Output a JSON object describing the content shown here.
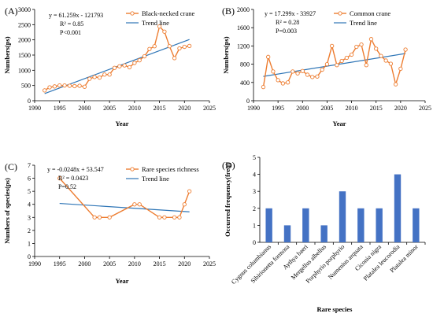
{
  "charts": [
    {
      "panel_label": "(A)",
      "type": "line",
      "xlabel": "Year",
      "ylabel": "Numbers(ps)",
      "xlim": [
        1990,
        2025
      ],
      "ylim": [
        0,
        3000
      ],
      "xticks": [
        1990,
        1995,
        2000,
        2005,
        2010,
        2015,
        2020,
        2025
      ],
      "yticks": [
        0,
        500,
        1000,
        1500,
        2000,
        2500,
        3000
      ],
      "annotations": [
        "y = 61.259x - 121793",
        "R² = 0.85",
        "P<0.001"
      ],
      "legend": {
        "series": "Black-necked crane",
        "trend": "Trend line"
      },
      "x": [
        1992,
        1993,
        1994,
        1995,
        1996,
        1997,
        1998,
        1999,
        2000,
        2001,
        2002,
        2003,
        2004,
        2005,
        2006,
        2007,
        2008,
        2009,
        2010,
        2011,
        2012,
        2013,
        2014,
        2015,
        2016,
        2017,
        2018,
        2019,
        2020,
        2021
      ],
      "y": [
        340,
        440,
        470,
        500,
        500,
        490,
        480,
        490,
        460,
        720,
        780,
        760,
        860,
        860,
        1080,
        1130,
        1160,
        1100,
        1240,
        1330,
        1460,
        1700,
        1790,
        2440,
        2270,
        1790,
        1400,
        1720,
        1770,
        1800
      ],
      "trend": {
        "slope": 61.259,
        "intercept": -121793,
        "x_range": [
          1992,
          2021
        ]
      }
    },
    {
      "panel_label": "(B)",
      "type": "line",
      "xlabel": "Year",
      "ylabel": "Numbers(ps)",
      "xlim": [
        1990,
        2025
      ],
      "ylim": [
        0,
        2000
      ],
      "xticks": [
        1990,
        1995,
        2000,
        2005,
        2010,
        2015,
        2020,
        2025
      ],
      "yticks": [
        0,
        400,
        800,
        1200,
        1600,
        2000
      ],
      "annotations": [
        "y = 17.299x - 33927",
        "R² = 0.28",
        "P=0.003"
      ],
      "legend": {
        "series": "Common crane",
        "trend": "Trend line"
      },
      "x": [
        1992,
        1993,
        1994,
        1995,
        1996,
        1997,
        1998,
        1999,
        2000,
        2001,
        2002,
        2003,
        2004,
        2005,
        2006,
        2007,
        2008,
        2009,
        2010,
        2011,
        2012,
        2013,
        2014,
        2015,
        2016,
        2017,
        2018,
        2019,
        2020,
        2021
      ],
      "y": [
        300,
        960,
        640,
        450,
        380,
        400,
        640,
        600,
        650,
        570,
        520,
        530,
        680,
        800,
        1200,
        780,
        870,
        940,
        1010,
        1180,
        1230,
        780,
        1350,
        1140,
        980,
        880,
        810,
        360,
        700,
        1120
      ],
      "trend": {
        "slope": 17.299,
        "intercept": -33927,
        "x_range": [
          1992,
          2021
        ]
      }
    },
    {
      "panel_label": "(C)",
      "type": "line",
      "xlabel": "Year",
      "ylabel": "Numbers of species(ps)",
      "xlim": [
        1990,
        2025
      ],
      "ylim": [
        0,
        7
      ],
      "xticks": [
        1990,
        1995,
        2000,
        2005,
        2010,
        2015,
        2020,
        2025
      ],
      "yticks": [
        0,
        1,
        2,
        3,
        4,
        5,
        6,
        7
      ],
      "annotations": [
        "y = -0.0248x + 53.547",
        "R² = 0.0423",
        "P=0.52"
      ],
      "legend": {
        "series": "Rare species richness",
        "trend": "Trend line"
      },
      "x": [
        1995,
        2002,
        2003,
        2005,
        2010,
        2011,
        2015,
        2016,
        2018,
        2019,
        2020,
        2021
      ],
      "y": [
        6,
        3,
        3,
        3,
        4,
        4,
        3,
        3,
        3,
        3,
        4,
        5
      ],
      "trend": {
        "slope": -0.0248,
        "intercept": 53.547,
        "x_range": [
          1995,
          2021
        ]
      }
    },
    {
      "panel_label": "(D)",
      "type": "bar",
      "xlabel": "Rare species",
      "ylabel": "Occurred frequency(freq)",
      "ylim": [
        0,
        5
      ],
      "yticks": [
        0,
        1,
        2,
        3,
        4,
        5
      ],
      "categories": [
        "Cygnus columbianus",
        "Sibirionetta formosa",
        "Aythya baeri",
        "Mergellus albellus",
        "Porphyrio porphyrio",
        "Numenius arquata",
        "Ciconia nigra",
        "Platalea leucorodia",
        "Platalea minor"
      ],
      "values": [
        2,
        1,
        2,
        1,
        3,
        2,
        2,
        4,
        2
      ]
    }
  ],
  "colors": {
    "series": "#ED7D31",
    "trend": "#2E75B6",
    "bar": "#4472C4"
  }
}
